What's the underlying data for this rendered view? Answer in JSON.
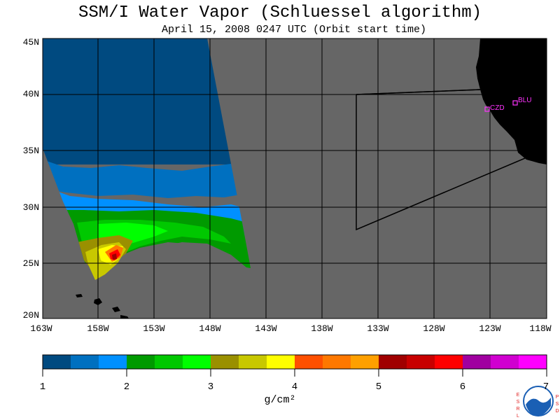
{
  "title": "SSM/I Water Vapor (Schluessel algorithm)",
  "subtitle": "April 15, 2008  0247 UTC  (Orbit start time)",
  "map": {
    "lon_range": [
      -163,
      -118
    ],
    "lat_range": [
      20,
      45
    ],
    "lat_labels": [
      "45N",
      "40N",
      "35N",
      "30N",
      "25N",
      "20N"
    ],
    "lon_labels": [
      "163W",
      "158W",
      "153W",
      "148W",
      "143W",
      "138W",
      "133W",
      "128W",
      "123W",
      "118W"
    ],
    "colors": {
      "no_data": "#666666",
      "land": "#000000",
      "grid": "#000000",
      "station": "#ff33ff"
    },
    "stations": [
      {
        "name": "CZD",
        "lon": -123.0,
        "lat": 38.6
      },
      {
        "name": "BLU",
        "lon": -120.8,
        "lat": 39.3
      }
    ]
  },
  "colorbar": {
    "ticks": [
      "1",
      "2",
      "3",
      "4",
      "5",
      "6",
      "7"
    ],
    "unit": "g/cm²",
    "colors": [
      "#004a80",
      "#0070c0",
      "#0090ff",
      "#009a00",
      "#00c800",
      "#00ff00",
      "#9a9000",
      "#c8c800",
      "#ffff00",
      "#ff5000",
      "#ff7800",
      "#ffa000",
      "#a00000",
      "#c80000",
      "#ff0000",
      "#a000a0",
      "#d000d0",
      "#ff00ff"
    ]
  },
  "logo": {
    "left": "ESRL",
    "right": "PSD",
    "center": "NOAA"
  }
}
